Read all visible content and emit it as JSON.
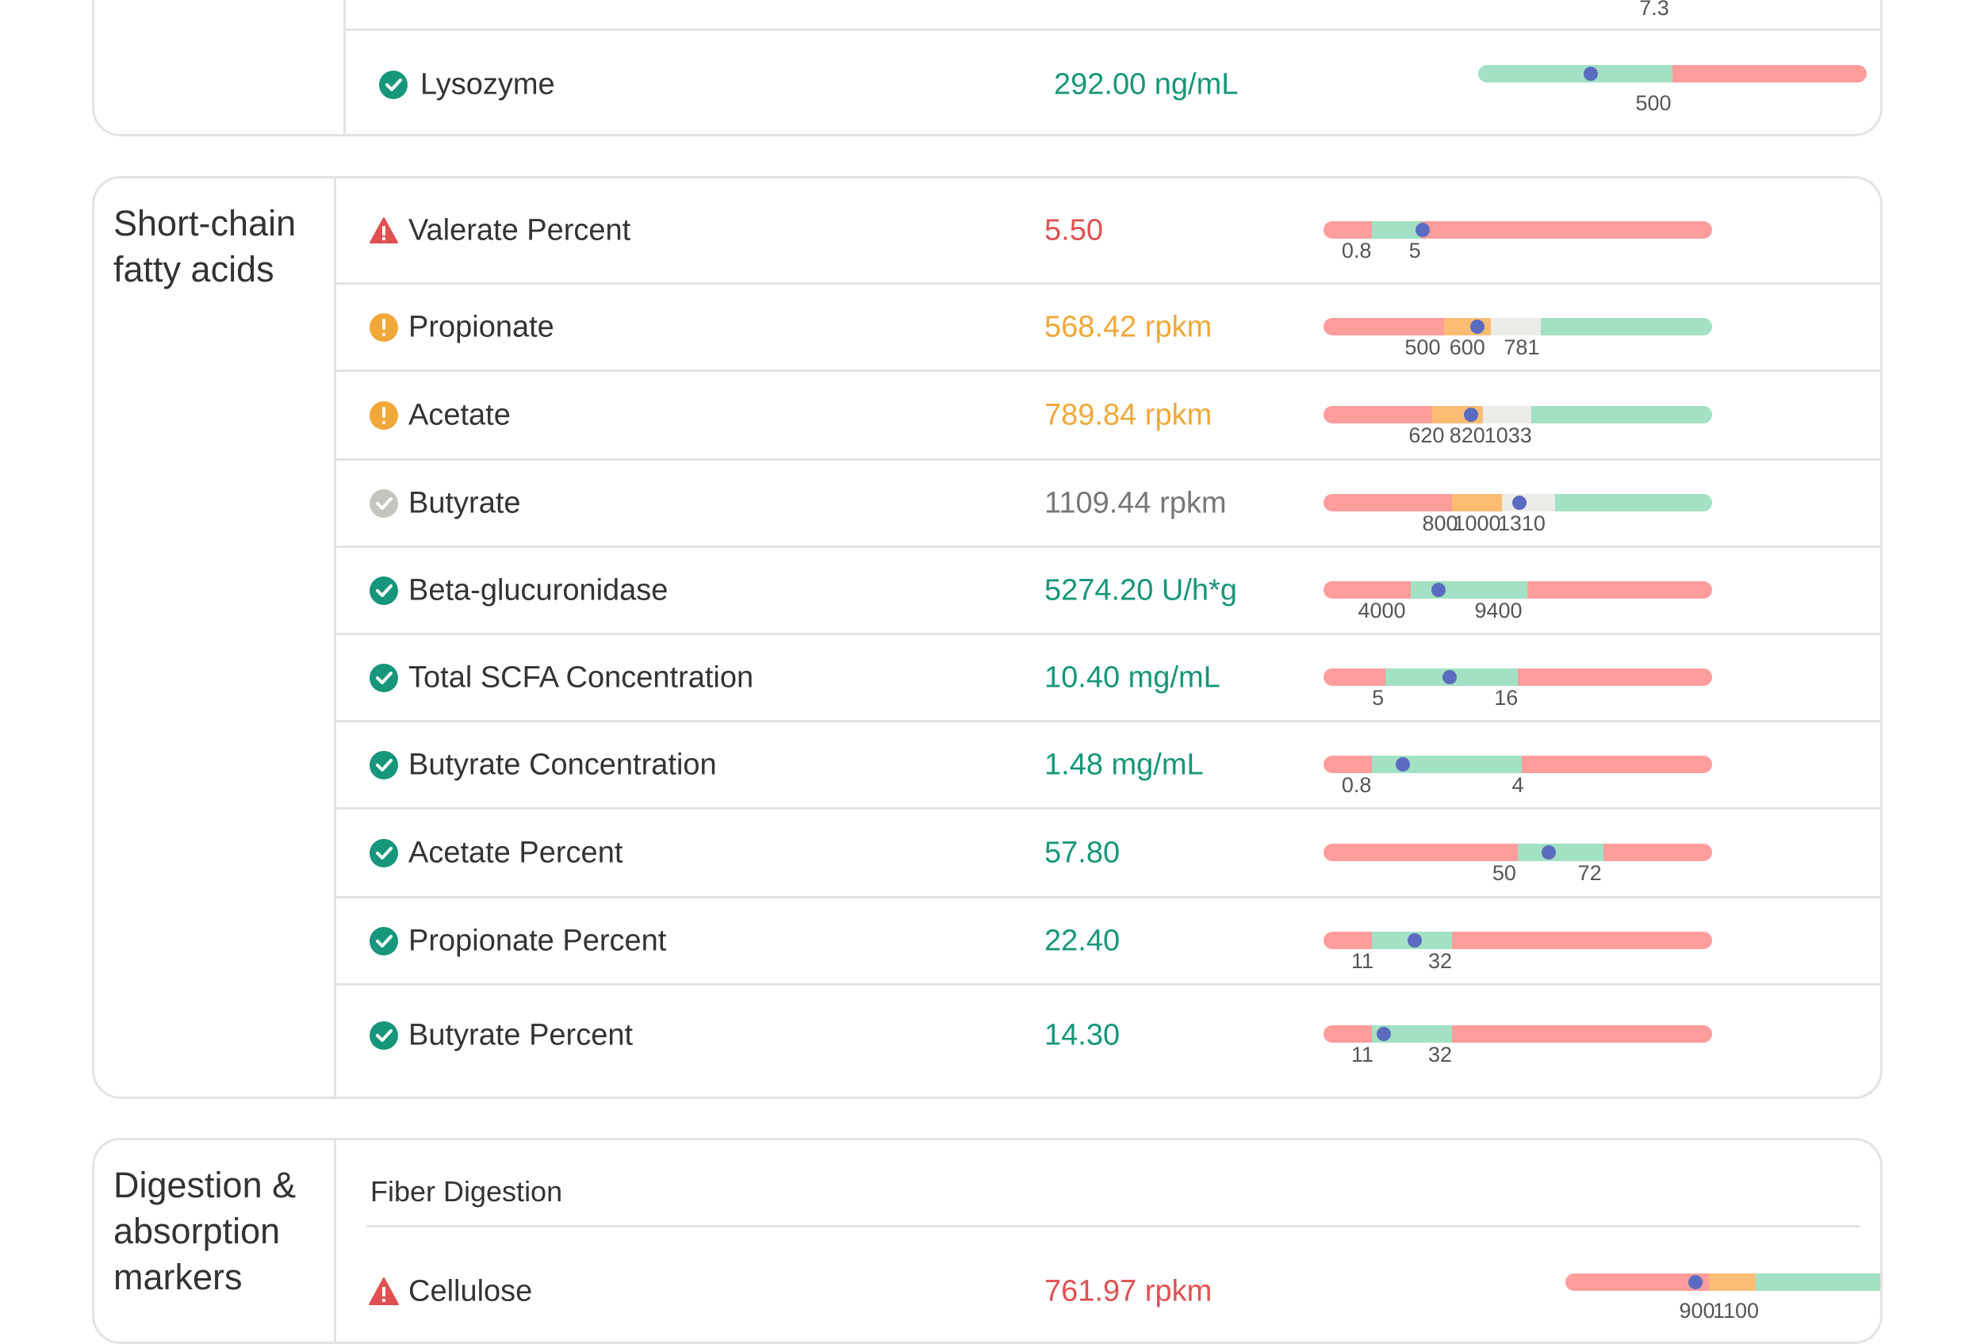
{
  "sections": [
    {
      "title": "",
      "rows": [
        {
          "name": "",
          "value": "",
          "status": "ok",
          "segments": [],
          "marker": null,
          "ticks": [
            {
              "label": "7.3",
              "pos": 0.46
            }
          ]
        },
        {
          "name": "Lysozyme",
          "value": "292.00 ng/mL",
          "status": "ok",
          "segments": [
            {
              "color": "green",
              "w": 0.5
            },
            {
              "color": "red",
              "w": 0.5
            }
          ],
          "marker": 0.29,
          "ticks": [
            {
              "label": "500",
              "pos": 0.45
            }
          ]
        }
      ]
    },
    {
      "title": "Short-chain\nfatty acids",
      "rows": [
        {
          "name": "Valerate Percent",
          "value": "5.50",
          "status": "warn",
          "segments": [
            {
              "color": "red",
              "w": 0.125
            },
            {
              "color": "green",
              "w": 0.125
            },
            {
              "color": "red",
              "w": 0.75
            }
          ],
          "marker": 0.255,
          "ticks": [
            {
              "label": "0.8",
              "pos": 0.085
            },
            {
              "label": "5",
              "pos": 0.235
            }
          ]
        },
        {
          "name": "Propionate",
          "value": "568.42 rpkm",
          "status": "caution",
          "segments": [
            {
              "color": "red",
              "w": 0.31
            },
            {
              "color": "orange",
              "w": 0.12
            },
            {
              "color": "gray",
              "w": 0.13
            },
            {
              "color": "green",
              "w": 0.44
            }
          ],
          "marker": 0.395,
          "ticks": [
            {
              "label": "500",
              "pos": 0.255
            },
            {
              "label": "600",
              "pos": 0.37
            },
            {
              "label": "781",
              "pos": 0.51
            }
          ]
        },
        {
          "name": "Acetate",
          "value": "789.84 rpkm",
          "status": "caution",
          "segments": [
            {
              "color": "red",
              "w": 0.28
            },
            {
              "color": "orange",
              "w": 0.13
            },
            {
              "color": "gray",
              "w": 0.125
            },
            {
              "color": "green",
              "w": 0.465
            }
          ],
          "marker": 0.38,
          "ticks": [
            {
              "label": "620",
              "pos": 0.265
            },
            {
              "label": "820",
              "pos": 0.37
            },
            {
              "label": "1033",
              "pos": 0.475
            }
          ]
        },
        {
          "name": "Butyrate",
          "value": "1109.44 rpkm",
          "status": "neutral",
          "segments": [
            {
              "color": "red",
              "w": 0.33
            },
            {
              "color": "orange",
              "w": 0.13
            },
            {
              "color": "gray",
              "w": 0.135
            },
            {
              "color": "green",
              "w": 0.405
            }
          ],
          "marker": 0.505,
          "ticks": [
            {
              "label": "800",
              "pos": 0.3
            },
            {
              "label": "1000",
              "pos": 0.395
            },
            {
              "label": "1310",
              "pos": 0.51
            }
          ]
        },
        {
          "name": "Beta-glucuronidase",
          "value": "5274.20 U/h*g",
          "status": "ok",
          "segments": [
            {
              "color": "red",
              "w": 0.225
            },
            {
              "color": "green",
              "w": 0.3
            },
            {
              "color": "red",
              "w": 0.475
            }
          ],
          "marker": 0.295,
          "ticks": [
            {
              "label": "4000",
              "pos": 0.15
            },
            {
              "label": "9400",
              "pos": 0.45
            }
          ]
        },
        {
          "name": "Total SCFA Concentration",
          "value": "10.40 mg/mL",
          "status": "ok",
          "segments": [
            {
              "color": "red",
              "w": 0.16
            },
            {
              "color": "green",
              "w": 0.34
            },
            {
              "color": "red",
              "w": 0.5
            }
          ],
          "marker": 0.325,
          "ticks": [
            {
              "label": "5",
              "pos": 0.14
            },
            {
              "label": "16",
              "pos": 0.47
            }
          ]
        },
        {
          "name": "Butyrate Concentration",
          "value": "1.48 mg/mL",
          "status": "ok",
          "segments": [
            {
              "color": "red",
              "w": 0.125
            },
            {
              "color": "green",
              "w": 0.385
            },
            {
              "color": "red",
              "w": 0.49
            }
          ],
          "marker": 0.205,
          "ticks": [
            {
              "label": "0.8",
              "pos": 0.085
            },
            {
              "label": "4",
              "pos": 0.5
            }
          ]
        },
        {
          "name": "Acetate Percent",
          "value": "57.80",
          "status": "ok",
          "segments": [
            {
              "color": "red",
              "w": 0.5
            },
            {
              "color": "green",
              "w": 0.22
            },
            {
              "color": "red",
              "w": 0.28
            }
          ],
          "marker": 0.58,
          "ticks": [
            {
              "label": "50",
              "pos": 0.465
            },
            {
              "label": "72",
              "pos": 0.685
            }
          ]
        },
        {
          "name": "Propionate Percent",
          "value": "22.40",
          "status": "ok",
          "segments": [
            {
              "color": "red",
              "w": 0.125
            },
            {
              "color": "green",
              "w": 0.205
            },
            {
              "color": "red",
              "w": 0.67
            }
          ],
          "marker": 0.235,
          "ticks": [
            {
              "label": "11",
              "pos": 0.1
            },
            {
              "label": "32",
              "pos": 0.3
            }
          ]
        },
        {
          "name": "Butyrate Percent",
          "value": "14.30",
          "status": "ok",
          "segments": [
            {
              "color": "red",
              "w": 0.125
            },
            {
              "color": "green",
              "w": 0.205
            },
            {
              "color": "red",
              "w": 0.67
            }
          ],
          "marker": 0.155,
          "ticks": [
            {
              "label": "11",
              "pos": 0.1
            },
            {
              "label": "32",
              "pos": 0.3
            }
          ]
        }
      ]
    },
    {
      "title": "Digestion &\nabsorption\nmarkers",
      "subheading": "Fiber Digestion",
      "rows": [
        {
          "name": "Cellulose",
          "value": "761.97 rpkm",
          "status": "warn",
          "segments": [
            {
              "color": "red",
              "w": 0.37
            },
            {
              "color": "orange",
              "w": 0.12
            },
            {
              "color": "green",
              "w": 0.51
            }
          ],
          "marker": 0.335,
          "ticks": [
            {
              "label": "900",
              "pos": 0.34
            },
            {
              "label": "1100",
              "pos": 0.44
            }
          ]
        }
      ]
    }
  ]
}
